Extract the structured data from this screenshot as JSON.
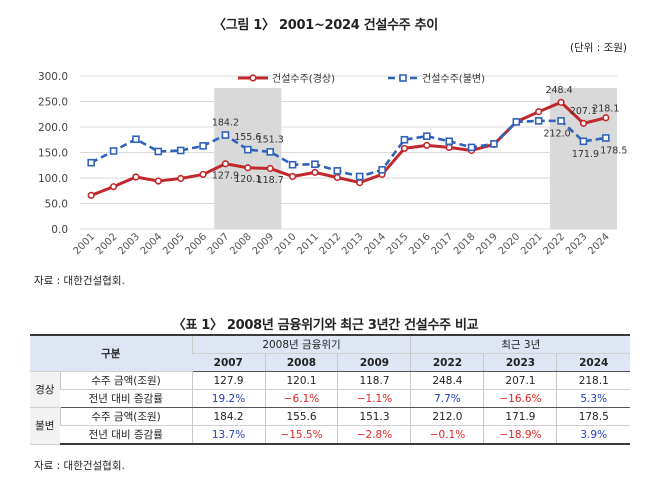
{
  "figure": {
    "title": "〈그림 1〉 2001~2024 건설수주 추이",
    "unit": "(단위 : 조원)",
    "source": "자료 : 대한건설협회."
  },
  "chart_data": {
    "type": "line",
    "title": "〈그림 1〉 2001~2024 건설수주 추이",
    "unit": "(단위 : 조원)",
    "x": [
      "2001",
      "2002",
      "2003",
      "2004",
      "2005",
      "2006",
      "2007",
      "2008",
      "2009",
      "2010",
      "2011",
      "2012",
      "2013",
      "2014",
      "2015",
      "2016",
      "2017",
      "2018",
      "2019",
      "2020",
      "2021",
      "2022",
      "2023",
      "2024"
    ],
    "ylim": [
      0,
      300
    ],
    "yticks": [
      "0.0",
      "50.0",
      "100.0",
      "150.0",
      "200.0",
      "250.0",
      "300.0"
    ],
    "grid": true,
    "legend_position": "top-right",
    "highlight_ranges": [
      [
        "2007",
        "2009"
      ],
      [
        "2022",
        "2024"
      ]
    ],
    "series": [
      {
        "name": "건설수주(경상)",
        "color": "#c0282d",
        "style": "solid",
        "values": [
          66,
          83,
          102,
          94,
          99,
          107,
          127.9,
          120.1,
          118.7,
          103,
          111,
          101,
          91,
          107,
          158,
          164,
          160,
          154,
          166,
          210,
          230,
          248.4,
          207.1,
          218.1
        ],
        "labels": {
          "2007": "127.9",
          "2008": "120.1",
          "2009": "118.7",
          "2022": "248.4",
          "2023": "207.1",
          "2024": "218.1"
        }
      },
      {
        "name": "건설수주(불변)",
        "color": "#2f62b8",
        "style": "dashed",
        "values": [
          130,
          153,
          176,
          152,
          154,
          163,
          184.2,
          155.6,
          151.3,
          126,
          127,
          114,
          103,
          116,
          175,
          182,
          172,
          160,
          167,
          210,
          212,
          212.0,
          171.9,
          178.5
        ],
        "labels": {
          "2007": "184.2",
          "2008": "155.6",
          "2009": "151.3",
          "2022": "212.0",
          "2023": "171.9",
          "2024": "178.5"
        }
      }
    ]
  },
  "table": {
    "title": "〈표 1〉 2008년 금융위기와 최근 3년간 건설수주 비교",
    "gubun": "구분",
    "group1": "2008년 금융위기",
    "group2": "최근 3년",
    "years": [
      "2007",
      "2008",
      "2009",
      "2022",
      "2023",
      "2024"
    ],
    "rows": [
      {
        "group": "경상",
        "label": "수주 금액(조원)",
        "values": [
          "127.9",
          "120.1",
          "118.7",
          "248.4",
          "207.1",
          "218.1"
        ],
        "colored": false
      },
      {
        "group": "",
        "label": "전년 대비 증감률",
        "values": [
          "19.2%",
          "−6.1%",
          "−1.1%",
          "7.7%",
          "−16.6%",
          "5.3%"
        ],
        "colored": true
      },
      {
        "group": "불변",
        "label": "수주 금액(조원)",
        "values": [
          "184.2",
          "155.6",
          "151.3",
          "212.0",
          "171.9",
          "178.5"
        ],
        "colored": false
      },
      {
        "group": "",
        "label": "전년 대비 증감률",
        "values": [
          "13.7%",
          "−15.5%",
          "−2.8%",
          "−0.1%",
          "−18.9%",
          "3.9%"
        ],
        "colored": true
      }
    ],
    "source": "자료 : 대한건설협회."
  }
}
